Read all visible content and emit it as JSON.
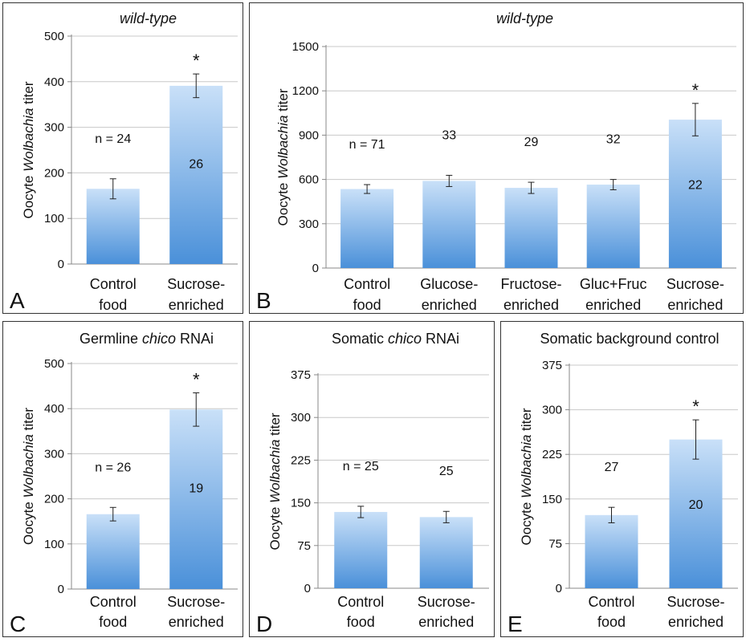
{
  "figure": {
    "ylabel_prefix": "Oocyte ",
    "ylabel_italic": "Wolbachia",
    "ylabel_suffix": " titer"
  },
  "colors": {
    "bar_top": "#c9e0f8",
    "bar_bottom": "#4a90d9",
    "grid": "#c8c8c8",
    "axis": "#888888",
    "text": "#111111"
  },
  "chart_data": [
    {
      "type": "bar",
      "panel_letter": "A",
      "title_parts": [
        {
          "text": "wild-type",
          "italic": true
        }
      ],
      "categories": [
        [
          "Control",
          "food"
        ],
        [
          "Sucrose-",
          "enriched"
        ]
      ],
      "values": [
        165,
        391
      ],
      "errors": [
        22,
        26
      ],
      "significance": [
        "",
        "*"
      ],
      "n_labels": [
        "n = 24",
        "26"
      ],
      "n_label_pos": [
        "above",
        "inside"
      ],
      "yticks": [
        0,
        100,
        200,
        300,
        400,
        500
      ],
      "ylim": [
        0,
        500
      ],
      "grid": true
    },
    {
      "type": "bar",
      "panel_letter": "B",
      "title_parts": [
        {
          "text": "wild-type",
          "italic": true
        }
      ],
      "categories": [
        [
          "Control",
          "food"
        ],
        [
          "Glucose-",
          "enriched"
        ],
        [
          "Fructose-",
          "enriched"
        ],
        [
          "Gluc+Fruc",
          "enriched"
        ],
        [
          "Sucrose-",
          "enriched"
        ]
      ],
      "values": [
        535,
        590,
        543,
        565,
        1005
      ],
      "errors": [
        30,
        38,
        38,
        35,
        110
      ],
      "significance": [
        "",
        "",
        "",
        "",
        "*"
      ],
      "n_labels": [
        "n = 71",
        "33",
        "29",
        "32",
        "22"
      ],
      "n_label_pos": [
        "above",
        "above",
        "above",
        "above",
        "inside"
      ],
      "yticks": [
        0,
        300,
        600,
        900,
        1200,
        1500
      ],
      "ylim": [
        0,
        1500
      ],
      "grid": true
    },
    {
      "type": "bar",
      "panel_letter": "C",
      "title_parts": [
        {
          "text": "Germline ",
          "italic": false
        },
        {
          "text": "chico",
          "italic": true
        },
        {
          "text": " RNAi",
          "italic": false
        }
      ],
      "categories": [
        [
          "Control",
          "food"
        ],
        [
          "Sucrose-",
          "enriched"
        ]
      ],
      "values": [
        166,
        398
      ],
      "errors": [
        15,
        37
      ],
      "significance": [
        "",
        "*"
      ],
      "n_labels": [
        "n = 26",
        "19"
      ],
      "n_label_pos": [
        "above",
        "inside"
      ],
      "yticks": [
        0,
        100,
        200,
        300,
        400,
        500
      ],
      "ylim": [
        0,
        500
      ],
      "grid": true
    },
    {
      "type": "bar",
      "panel_letter": "D",
      "title_parts": [
        {
          "text": "Somatic ",
          "italic": false
        },
        {
          "text": "chico",
          "italic": true
        },
        {
          "text": " RNAi",
          "italic": false
        }
      ],
      "categories": [
        [
          "Control",
          "food"
        ],
        [
          "Sucrose-",
          "enriched"
        ]
      ],
      "values": [
        134,
        125
      ],
      "errors": [
        10,
        10
      ],
      "significance": [
        "",
        ""
      ],
      "n_labels": [
        "n = 25",
        "25"
      ],
      "n_label_pos": [
        "above",
        "above"
      ],
      "yticks": [
        0,
        75,
        150,
        225,
        300,
        375
      ],
      "ylim": [
        0,
        375
      ],
      "grid": true
    },
    {
      "type": "bar",
      "panel_letter": "E",
      "title_parts": [
        {
          "text": "Somatic background control",
          "italic": false
        }
      ],
      "categories": [
        [
          "Control",
          "food"
        ],
        [
          "Sucrose-",
          "enriched"
        ]
      ],
      "values": [
        123,
        250
      ],
      "errors": [
        13,
        33
      ],
      "significance": [
        "",
        "*"
      ],
      "n_labels": [
        "27",
        "20"
      ],
      "n_label_pos": [
        "above",
        "inside"
      ],
      "yticks": [
        0,
        75,
        150,
        225,
        300,
        375
      ],
      "ylim": [
        0,
        375
      ],
      "grid": true
    }
  ]
}
